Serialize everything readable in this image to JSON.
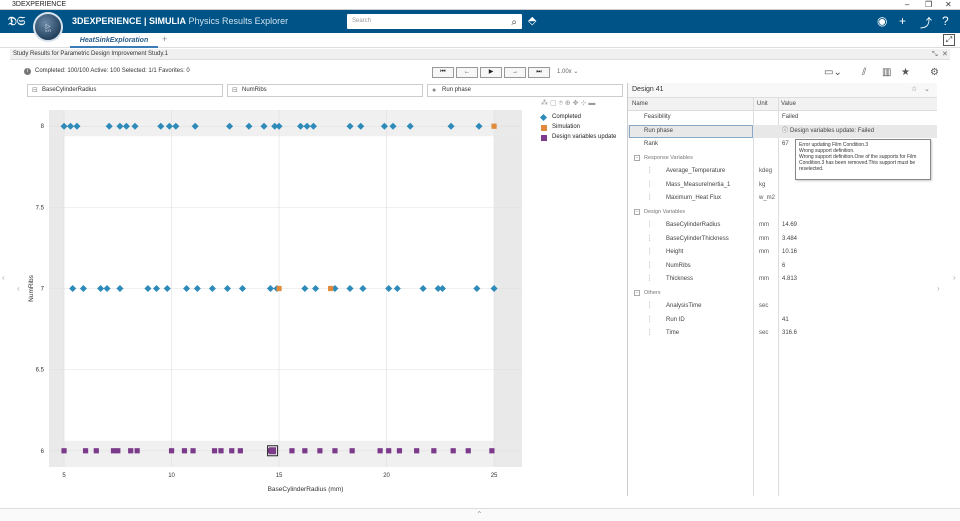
{
  "window": {
    "title": "3DEXPERIENCE",
    "controls": [
      "–",
      "❐",
      "✕"
    ]
  },
  "appbar": {
    "brand_bold": "3DEXPERIENCE | SIMULIA",
    "brand_app": " Physics Results Explorer",
    "compass_version": "V.R",
    "search_placeholder": "Search"
  },
  "tabs": {
    "active": "HeatSinkExploration",
    "add": "+"
  },
  "studybar": {
    "title": "Study Results for Parametric Design Improvement Study.1"
  },
  "status": {
    "text": "Completed: 100/100   Active: 100   Selected: 1/1   Favorites: 0",
    "zoom": "1.00x"
  },
  "filters": {
    "x_field": "BaseCylinderRadius",
    "y_field": "NumRibs",
    "color_field": "Run phase"
  },
  "legend": [
    {
      "label": "Completed",
      "color": "#2e8ab8",
      "shape": "diamond"
    },
    {
      "label": "Simulation",
      "color": "#e08a3c",
      "shape": "square"
    },
    {
      "label": "Design variables update",
      "color": "#7b3b8a",
      "shape": "square"
    }
  ],
  "chart_data": {
    "type": "scatter",
    "xlabel": "BaseCylinderRadius (mm)",
    "ylabel": "NumRibs",
    "xlim": [
      4.3,
      26.3
    ],
    "ylim": [
      5.9,
      8.1
    ],
    "xticks": [
      5,
      10,
      15,
      20,
      25
    ],
    "yticks": [
      6,
      6.5,
      7,
      7.5,
      8
    ],
    "series": [
      {
        "name": "Completed",
        "points": [
          [
            5.0,
            8
          ],
          [
            5.3,
            8
          ],
          [
            5.6,
            8
          ],
          [
            7.1,
            8
          ],
          [
            7.6,
            8
          ],
          [
            7.9,
            8
          ],
          [
            8.3,
            8
          ],
          [
            9.5,
            8
          ],
          [
            9.9,
            8
          ],
          [
            10.2,
            8
          ],
          [
            11.1,
            8
          ],
          [
            12.7,
            8
          ],
          [
            13.6,
            8
          ],
          [
            14.3,
            8
          ],
          [
            14.8,
            8
          ],
          [
            15.0,
            8
          ],
          [
            16.0,
            8
          ],
          [
            16.3,
            8
          ],
          [
            16.6,
            8
          ],
          [
            18.3,
            8
          ],
          [
            18.8,
            8
          ],
          [
            19.9,
            8
          ],
          [
            20.3,
            8
          ],
          [
            21.1,
            8
          ],
          [
            23.0,
            8
          ],
          [
            24.3,
            8
          ],
          [
            5.4,
            7
          ],
          [
            5.9,
            7
          ],
          [
            6.7,
            7
          ],
          [
            7.0,
            7
          ],
          [
            7.6,
            7
          ],
          [
            8.9,
            7
          ],
          [
            9.3,
            7
          ],
          [
            9.8,
            7
          ],
          [
            10.7,
            7
          ],
          [
            11.2,
            7
          ],
          [
            11.9,
            7
          ],
          [
            12.6,
            7
          ],
          [
            13.3,
            7
          ],
          [
            14.6,
            7
          ],
          [
            14.9,
            7
          ],
          [
            16.2,
            7
          ],
          [
            16.7,
            7
          ],
          [
            17.6,
            7
          ],
          [
            18.3,
            7
          ],
          [
            18.9,
            7
          ],
          [
            20.1,
            7
          ],
          [
            20.5,
            7
          ],
          [
            21.7,
            7
          ],
          [
            22.4,
            7
          ],
          [
            22.6,
            7
          ],
          [
            24.2,
            7
          ],
          [
            25.0,
            7
          ]
        ]
      },
      {
        "name": "Simulation",
        "points": [
          [
            15.0,
            7
          ],
          [
            17.4,
            7
          ],
          [
            25.0,
            8
          ]
        ]
      },
      {
        "name": "Design variables update",
        "points": [
          [
            5.0,
            6
          ],
          [
            6.0,
            6
          ],
          [
            6.5,
            6
          ],
          [
            7.3,
            6
          ],
          [
            7.5,
            6
          ],
          [
            8.1,
            6
          ],
          [
            8.4,
            6
          ],
          [
            10.0,
            6
          ],
          [
            10.6,
            6
          ],
          [
            11.0,
            6
          ],
          [
            12.0,
            6
          ],
          [
            12.3,
            6
          ],
          [
            12.8,
            6
          ],
          [
            13.2,
            6
          ],
          [
            14.6,
            6
          ],
          [
            15.6,
            6
          ],
          [
            16.2,
            6
          ],
          [
            16.9,
            6
          ],
          [
            17.6,
            6
          ],
          [
            18.4,
            6
          ],
          [
            19.7,
            6
          ],
          [
            20.1,
            6
          ],
          [
            20.6,
            6
          ],
          [
            21.4,
            6
          ],
          [
            22.2,
            6
          ],
          [
            23.1,
            6
          ],
          [
            23.8,
            6
          ],
          [
            24.9,
            6
          ]
        ],
        "selected": [
          14.7,
          6
        ]
      }
    ],
    "grid": true
  },
  "panel": {
    "title": "Design 41",
    "columns": {
      "name": "Name",
      "unit": "Unit",
      "value": "Value"
    },
    "rows": [
      {
        "name": "Feasibility",
        "unit": "",
        "value": "Failed",
        "indent": 1
      },
      {
        "name": "Run phase",
        "unit": "",
        "value": "Design variables update: Failed",
        "indent": 1,
        "highlight": true
      },
      {
        "name": "Rank",
        "unit": "",
        "value": "67",
        "indent": 1
      },
      {
        "name": "Response Variables",
        "unit": "",
        "value": "",
        "group": true
      },
      {
        "name": "Average_Temperature",
        "unit": "kdeg",
        "value": "",
        "indent": 2
      },
      {
        "name": "Mass_MeasureInertia_1",
        "unit": "kg",
        "value": "",
        "indent": 2
      },
      {
        "name": "Maximum_Heat Flux",
        "unit": "w_m2",
        "value": "",
        "indent": 2
      },
      {
        "name": "Design Variables",
        "unit": "",
        "value": "",
        "group": true
      },
      {
        "name": "BaseCylinderRadius",
        "unit": "mm",
        "value": "14.69",
        "indent": 2
      },
      {
        "name": "BaseCylinderThickness",
        "unit": "mm",
        "value": "3.484",
        "indent": 2
      },
      {
        "name": "Height",
        "unit": "mm",
        "value": "10.16",
        "indent": 2
      },
      {
        "name": "NumRibs",
        "unit": "",
        "value": "6",
        "indent": 2
      },
      {
        "name": "Thickness",
        "unit": "mm",
        "value": "4.813",
        "indent": 2
      },
      {
        "name": "Others",
        "unit": "",
        "value": "",
        "group": true
      },
      {
        "name": "AnalysisTime",
        "unit": "sec",
        "value": "",
        "indent": 2
      },
      {
        "name": "Run ID",
        "unit": "",
        "value": "41",
        "indent": 2
      },
      {
        "name": "Time",
        "unit": "sec",
        "value": "316.6",
        "indent": 2
      }
    ]
  },
  "tooltip": {
    "lines": [
      "Error updating Film Condition.3",
      "Wrong support definition.",
      "Wrong support definition.One of the supports for Film",
      "Condition.3 has been removed.This support must be",
      "reselected."
    ]
  }
}
